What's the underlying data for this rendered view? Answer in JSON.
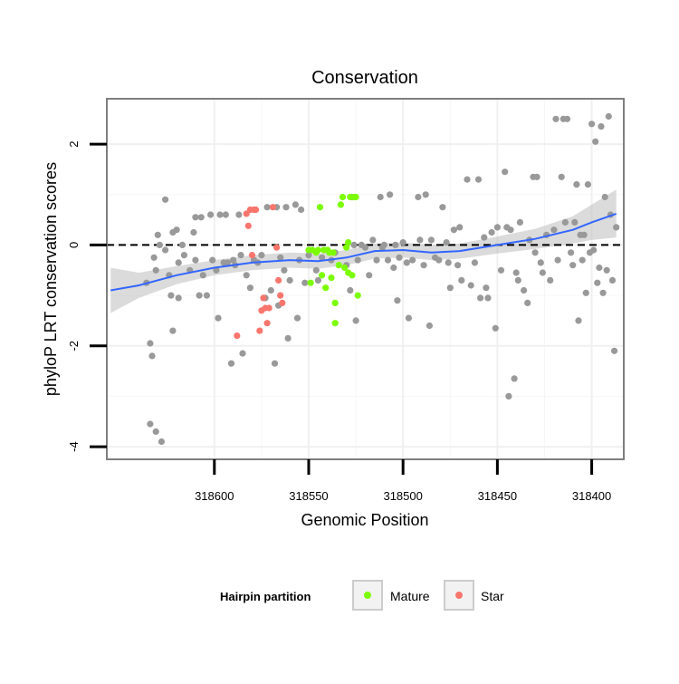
{
  "chart_data": {
    "type": "scatter",
    "title": "Conservation",
    "xlabel": "Genomic Position",
    "ylabel": "phyloP LRT conservation scores",
    "x_reversed": true,
    "xlim": [
      318383,
      318657
    ],
    "ylim": [
      -4.25,
      2.9
    ],
    "x_ticks": [
      318600,
      318550,
      318500,
      318450,
      318400
    ],
    "y_ticks": [
      -4,
      -2,
      0,
      2
    ],
    "reference_line_y": 0,
    "grid": true,
    "legend": {
      "title": "Hairpin partition",
      "position": "bottom",
      "entries": [
        {
          "label": "Mature",
          "color": "#7CFC00"
        },
        {
          "label": "Star",
          "color": "#F8766D"
        }
      ]
    },
    "colors": {
      "other": "#999999",
      "mature": "#7CFC00",
      "star": "#F8766D",
      "smooth": "#3366FF",
      "ribbon": "#BEBEBE"
    },
    "series": [
      {
        "group": "other",
        "points": [
          [
            318636,
            -0.75
          ],
          [
            318634,
            -3.55
          ],
          [
            318634,
            -1.95
          ],
          [
            318633,
            -2.2
          ],
          [
            318632,
            -0.25
          ],
          [
            318631,
            -0.5
          ],
          [
            318631,
            -3.7
          ],
          [
            318630,
            0.2
          ],
          [
            318629,
            0.0
          ],
          [
            318628,
            -3.9
          ],
          [
            318626,
            -0.1
          ],
          [
            318626,
            0.9
          ],
          [
            318624,
            -0.6
          ],
          [
            318623,
            -1.0
          ],
          [
            318622,
            -1.7
          ],
          [
            318622,
            0.25
          ],
          [
            318620,
            0.3
          ],
          [
            318619,
            -0.35
          ],
          [
            318619,
            -1.05
          ],
          [
            318617,
            0.0
          ],
          [
            318616,
            -0.2
          ],
          [
            318613,
            -0.5
          ],
          [
            318611,
            0.25
          ],
          [
            318610,
            0.55
          ],
          [
            318610,
            -0.3
          ],
          [
            318608,
            -1.0
          ],
          [
            318607,
            0.55
          ],
          [
            318606,
            -0.6
          ],
          [
            318604,
            -1.0
          ],
          [
            318602,
            0.6
          ],
          [
            318601,
            -0.3
          ],
          [
            318599,
            -0.5
          ],
          [
            318598,
            -1.45
          ],
          [
            318597,
            0.6
          ],
          [
            318595,
            -0.35
          ],
          [
            318594,
            0.6
          ],
          [
            318593,
            -0.35
          ],
          [
            318591,
            -2.35
          ],
          [
            318590,
            -0.3
          ],
          [
            318589,
            -0.4
          ],
          [
            318587,
            0.6
          ],
          [
            318586,
            -0.2
          ],
          [
            318585,
            -2.15
          ],
          [
            318583,
            -0.6
          ],
          [
            318581,
            -0.85
          ],
          [
            318579,
            0.7
          ],
          [
            318579,
            -0.3
          ],
          [
            318577,
            -0.35
          ],
          [
            318575,
            -0.2
          ],
          [
            318573,
            -1.05
          ],
          [
            318572,
            0.75
          ],
          [
            318570,
            -0.9
          ],
          [
            318568,
            -2.35
          ],
          [
            318567,
            0.75
          ],
          [
            318566,
            -1.2
          ],
          [
            318565,
            -0.25
          ],
          [
            318563,
            -0.5
          ],
          [
            318562,
            0.75
          ],
          [
            318561,
            -1.85
          ],
          [
            318560,
            -0.7
          ],
          [
            318557,
            0.8
          ],
          [
            318556,
            -1.45
          ],
          [
            318555,
            -0.3
          ],
          [
            318554,
            0.7
          ],
          [
            318552,
            -0.75
          ],
          [
            318550,
            -0.2
          ],
          [
            318546,
            -0.5
          ],
          [
            318545,
            -0.7
          ],
          [
            318543,
            -0.25
          ],
          [
            318538,
            -0.3
          ],
          [
            318536,
            -0.15
          ],
          [
            318530,
            -0.4
          ],
          [
            318528,
            -0.9
          ],
          [
            318527,
            0.95
          ],
          [
            318526,
            0.0
          ],
          [
            318525,
            -1.5
          ],
          [
            318524,
            -0.3
          ],
          [
            318522,
            0.0
          ],
          [
            318520,
            -0.05
          ],
          [
            318518,
            -0.6
          ],
          [
            318516,
            0.1
          ],
          [
            318514,
            -0.3
          ],
          [
            318512,
            0.95
          ],
          [
            318511,
            -0.05
          ],
          [
            318510,
            0.0
          ],
          [
            318508,
            -0.3
          ],
          [
            318507,
            1.0
          ],
          [
            318505,
            -0.45
          ],
          [
            318504,
            0.0
          ],
          [
            318503,
            -1.1
          ],
          [
            318502,
            -0.25
          ],
          [
            318500,
            0.05
          ],
          [
            318498,
            -0.35
          ],
          [
            318497,
            -1.45
          ],
          [
            318495,
            -0.3
          ],
          [
            318492,
            0.95
          ],
          [
            318491,
            0.1
          ],
          [
            318489,
            -0.4
          ],
          [
            318488,
            1.0
          ],
          [
            318486,
            -1.6
          ],
          [
            318485,
            0.1
          ],
          [
            318483,
            -0.25
          ],
          [
            318481,
            -0.3
          ],
          [
            318479,
            0.75
          ],
          [
            318477,
            0.05
          ],
          [
            318476,
            -0.35
          ],
          [
            318475,
            -0.85
          ],
          [
            318473,
            0.3
          ],
          [
            318471,
            -0.4
          ],
          [
            318470,
            0.35
          ],
          [
            318469,
            -0.7
          ],
          [
            318466,
            1.3
          ],
          [
            318464,
            -0.8
          ],
          [
            318462,
            -0.35
          ],
          [
            318460,
            1.3
          ],
          [
            318459,
            -1.05
          ],
          [
            318457,
            0.15
          ],
          [
            318456,
            -0.85
          ],
          [
            318455,
            -1.05
          ],
          [
            318453,
            0.25
          ],
          [
            318451,
            -1.65
          ],
          [
            318450,
            0.35
          ],
          [
            318448,
            -0.5
          ],
          [
            318446,
            1.45
          ],
          [
            318445,
            0.35
          ],
          [
            318444,
            -3.0
          ],
          [
            318443,
            0.3
          ],
          [
            318441,
            -2.65
          ],
          [
            318440,
            -0.55
          ],
          [
            318439,
            -0.7
          ],
          [
            318438,
            0.45
          ],
          [
            318436,
            -0.9
          ],
          [
            318434,
            -1.15
          ],
          [
            318433,
            0.1
          ],
          [
            318431,
            1.35
          ],
          [
            318430,
            -0.15
          ],
          [
            318429,
            1.35
          ],
          [
            318427,
            -0.35
          ],
          [
            318426,
            -0.55
          ],
          [
            318424,
            0.2
          ],
          [
            318422,
            -0.7
          ],
          [
            318420,
            0.3
          ],
          [
            318419,
            2.5
          ],
          [
            318418,
            -0.3
          ],
          [
            318416,
            1.35
          ],
          [
            318415,
            2.5
          ],
          [
            318414,
            0.45
          ],
          [
            318413,
            2.5
          ],
          [
            318411,
            -0.15
          ],
          [
            318410,
            -0.4
          ],
          [
            318409,
            0.45
          ],
          [
            318408,
            1.2
          ],
          [
            318407,
            -1.5
          ],
          [
            318406,
            0.2
          ],
          [
            318405,
            -0.3
          ],
          [
            318404,
            0.2
          ],
          [
            318403,
            -0.95
          ],
          [
            318402,
            1.2
          ],
          [
            318401,
            -0.15
          ],
          [
            318400,
            2.4
          ],
          [
            318399,
            -0.1
          ],
          [
            318398,
            2.05
          ],
          [
            318397,
            -0.75
          ],
          [
            318396,
            -0.45
          ],
          [
            318395,
            2.35
          ],
          [
            318394,
            -0.95
          ],
          [
            318393,
            0.95
          ],
          [
            318392,
            -0.5
          ],
          [
            318391,
            2.55
          ],
          [
            318390,
            0.6
          ],
          [
            318389,
            -0.7
          ],
          [
            318388,
            -2.1
          ],
          [
            318387,
            0.35
          ]
        ]
      },
      {
        "group": "mature",
        "points": [
          [
            318550,
            -0.1
          ],
          [
            318549,
            -0.75
          ],
          [
            318548,
            -0.1
          ],
          [
            318546,
            -0.15
          ],
          [
            318545,
            -0.1
          ],
          [
            318544,
            0.75
          ],
          [
            318543,
            -0.6
          ],
          [
            318542,
            -0.1
          ],
          [
            318541,
            -0.85
          ],
          [
            318540,
            -0.1
          ],
          [
            318539,
            -0.15
          ],
          [
            318538,
            -0.65
          ],
          [
            318537,
            -0.15
          ],
          [
            318536,
            -1.55
          ],
          [
            318536,
            -1.15
          ],
          [
            318534,
            -0.4
          ],
          [
            318533,
            0.8
          ],
          [
            318532,
            0.95
          ],
          [
            318531,
            -0.45
          ],
          [
            318530,
            -0.05
          ],
          [
            318529,
            0.05
          ],
          [
            318529,
            -0.55
          ],
          [
            318528,
            0.95
          ],
          [
            318527,
            -0.6
          ],
          [
            318526,
            0.95
          ],
          [
            318525,
            0.95
          ],
          [
            318524,
            -1.0
          ]
        ]
      },
      {
        "group": "star",
        "points": [
          [
            318588,
            -1.8
          ],
          [
            318583,
            0.62
          ],
          [
            318582,
            0.38
          ],
          [
            318581,
            0.7
          ],
          [
            318580,
            -0.2
          ],
          [
            318579,
            0.7
          ],
          [
            318578,
            0.7
          ],
          [
            318576,
            -1.7
          ],
          [
            318575,
            -1.3
          ],
          [
            318574,
            -1.05
          ],
          [
            318573,
            -1.25
          ],
          [
            318572,
            -1.55
          ],
          [
            318571,
            -1.25
          ],
          [
            318569,
            0.75
          ],
          [
            318567,
            -0.05
          ],
          [
            318566,
            -0.7
          ],
          [
            318565,
            -1.0
          ],
          [
            318564,
            -1.15
          ]
        ]
      }
    ],
    "smooth_fit": [
      [
        318655,
        -0.9
      ],
      [
        318640,
        -0.8
      ],
      [
        318620,
        -0.6
      ],
      [
        318600,
        -0.45
      ],
      [
        318580,
        -0.35
      ],
      [
        318560,
        -0.3
      ],
      [
        318545,
        -0.32
      ],
      [
        318530,
        -0.25
      ],
      [
        318515,
        -0.12
      ],
      [
        318500,
        -0.1
      ],
      [
        318485,
        -0.15
      ],
      [
        318470,
        -0.12
      ],
      [
        318450,
        0.0
      ],
      [
        318430,
        0.12
      ],
      [
        318410,
        0.3
      ],
      [
        318400,
        0.45
      ],
      [
        318387,
        0.62
      ]
    ],
    "smooth_band": [
      [
        318655,
        -1.35,
        -0.45
      ],
      [
        318640,
        -1.05,
        -0.55
      ],
      [
        318620,
        -0.78,
        -0.42
      ],
      [
        318600,
        -0.6,
        -0.3
      ],
      [
        318580,
        -0.5,
        -0.2
      ],
      [
        318560,
        -0.45,
        -0.15
      ],
      [
        318545,
        -0.47,
        -0.17
      ],
      [
        318530,
        -0.4,
        -0.1
      ],
      [
        318515,
        -0.27,
        0.03
      ],
      [
        318500,
        -0.25,
        0.05
      ],
      [
        318485,
        -0.3,
        0.0
      ],
      [
        318470,
        -0.27,
        0.03
      ],
      [
        318450,
        -0.17,
        0.17
      ],
      [
        318430,
        -0.08,
        0.32
      ],
      [
        318410,
        0.03,
        0.57
      ],
      [
        318400,
        0.1,
        0.8
      ],
      [
        318387,
        0.15,
        1.1
      ]
    ]
  }
}
